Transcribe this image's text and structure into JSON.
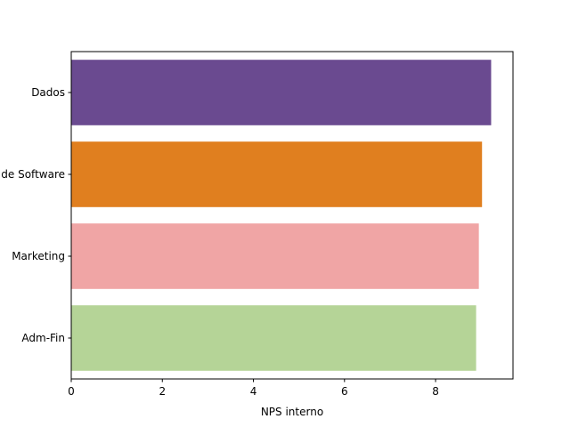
{
  "chart_data": {
    "type": "bar",
    "orientation": "horizontal",
    "categories": [
      "Dados",
      "Engenharia de Software",
      "Marketing",
      "Adm-Fin"
    ],
    "values": [
      9.22,
      9.02,
      8.95,
      8.89
    ],
    "colors": [
      "#6a4a90",
      "#e07f1f",
      "#f0a5a5",
      "#b5d497"
    ],
    "xlabel": "NPS interno",
    "ylabel": "",
    "title": "",
    "xlim": [
      0,
      9.7
    ],
    "xticks": [
      0,
      2,
      4,
      6,
      8
    ],
    "grid": false,
    "legend": "none"
  }
}
